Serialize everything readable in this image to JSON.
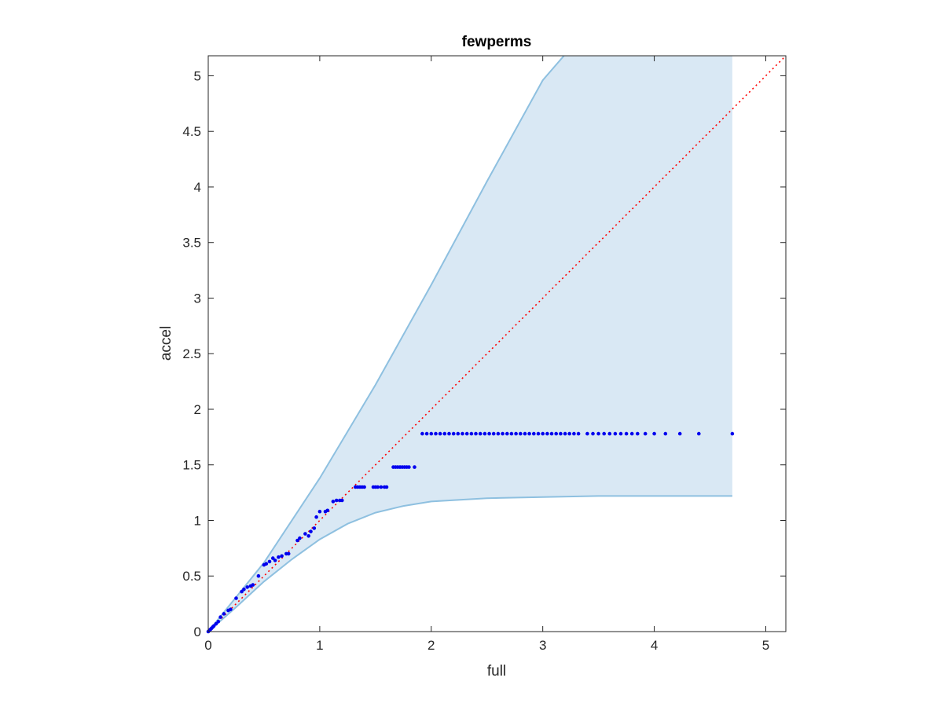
{
  "chart_data": {
    "type": "scatter",
    "title": "fewperms",
    "xlabel": "full",
    "ylabel": "accel",
    "xlim": [
      0,
      5.18
    ],
    "ylim": [
      0,
      5.18
    ],
    "xticks": [
      0,
      1,
      2,
      3,
      4,
      5
    ],
    "xtick_labels": [
      "0",
      "1",
      "2",
      "3",
      "4",
      "5"
    ],
    "yticks": [
      0,
      0.5,
      1,
      1.5,
      2,
      2.5,
      3,
      3.5,
      4,
      4.5,
      5
    ],
    "ytick_labels": [
      "0",
      "0.5",
      "1",
      "1.5",
      "2",
      "2.5",
      "3",
      "3.5",
      "4",
      "4.5",
      "5"
    ],
    "grid": false,
    "colors": {
      "band_fill": "#d9e8f4",
      "band_edge": "#8ec0e0",
      "points": "#0000ee",
      "reference_line": "#ff0000"
    },
    "band": {
      "upper": [
        [
          0,
          0
        ],
        [
          0.5,
          0.62
        ],
        [
          1,
          1.38
        ],
        [
          1.5,
          2.22
        ],
        [
          2,
          3.12
        ],
        [
          2.5,
          4.05
        ],
        [
          3,
          4.96
        ],
        [
          3.19,
          5.18
        ]
      ],
      "lower": [
        [
          0,
          0
        ],
        [
          0.25,
          0.22
        ],
        [
          0.5,
          0.45
        ],
        [
          0.75,
          0.65
        ],
        [
          1,
          0.83
        ],
        [
          1.25,
          0.97
        ],
        [
          1.5,
          1.07
        ],
        [
          1.75,
          1.13
        ],
        [
          2,
          1.17
        ],
        [
          2.5,
          1.2
        ],
        [
          3,
          1.21
        ],
        [
          3.5,
          1.22
        ],
        [
          4,
          1.22
        ],
        [
          4.7,
          1.22
        ]
      ],
      "x_end": 4.7
    },
    "reference_line": {
      "style": "dotted",
      "x": [
        0,
        5.18
      ],
      "y": [
        0,
        5.18
      ]
    },
    "series": [
      {
        "x": [
          0.0,
          0.01,
          0.02,
          0.03,
          0.04,
          0.05,
          0.07,
          0.09,
          0.11,
          0.14,
          0.18,
          0.2,
          0.25,
          0.3,
          0.32,
          0.35,
          0.38,
          0.4,
          0.45,
          0.5,
          0.52,
          0.55,
          0.58,
          0.6,
          0.63,
          0.66,
          0.7,
          0.72,
          0.8,
          0.82,
          0.87,
          0.9,
          0.92,
          0.95,
          0.97,
          1.0,
          1.05,
          1.07,
          1.12,
          1.15,
          1.18,
          1.2,
          1.32,
          1.34,
          1.36,
          1.38,
          1.4,
          1.48,
          1.5,
          1.52,
          1.55,
          1.58,
          1.6,
          1.66,
          1.68,
          1.7,
          1.72,
          1.74,
          1.76,
          1.78,
          1.8,
          1.85,
          1.92,
          1.96,
          2.0,
          2.04,
          2.08,
          2.12,
          2.16,
          2.2,
          2.24,
          2.28,
          2.32,
          2.36,
          2.4,
          2.44,
          2.48,
          2.52,
          2.56,
          2.6,
          2.64,
          2.68,
          2.72,
          2.76,
          2.8,
          2.84,
          2.88,
          2.92,
          2.96,
          3.0,
          3.04,
          3.08,
          3.12,
          3.16,
          3.2,
          3.24,
          3.28,
          3.32,
          3.4,
          3.45,
          3.5,
          3.55,
          3.6,
          3.65,
          3.7,
          3.75,
          3.8,
          3.85,
          3.92,
          4.0,
          4.1,
          4.23,
          4.4,
          4.7
        ],
        "y": [
          0.0,
          0.01,
          0.02,
          0.03,
          0.04,
          0.05,
          0.07,
          0.09,
          0.13,
          0.16,
          0.19,
          0.2,
          0.3,
          0.36,
          0.38,
          0.4,
          0.41,
          0.42,
          0.5,
          0.6,
          0.61,
          0.63,
          0.66,
          0.64,
          0.67,
          0.68,
          0.7,
          0.7,
          0.82,
          0.84,
          0.88,
          0.86,
          0.9,
          0.93,
          1.03,
          1.08,
          1.08,
          1.09,
          1.17,
          1.18,
          1.18,
          1.18,
          1.3,
          1.3,
          1.3,
          1.3,
          1.3,
          1.3,
          1.3,
          1.3,
          1.3,
          1.3,
          1.3,
          1.48,
          1.48,
          1.48,
          1.48,
          1.48,
          1.48,
          1.48,
          1.48,
          1.48,
          1.78,
          1.78,
          1.78,
          1.78,
          1.78,
          1.78,
          1.78,
          1.78,
          1.78,
          1.78,
          1.78,
          1.78,
          1.78,
          1.78,
          1.78,
          1.78,
          1.78,
          1.78,
          1.78,
          1.78,
          1.78,
          1.78,
          1.78,
          1.78,
          1.78,
          1.78,
          1.78,
          1.78,
          1.78,
          1.78,
          1.78,
          1.78,
          1.78,
          1.78,
          1.78,
          1.78,
          1.78,
          1.78,
          1.78,
          1.78,
          1.78,
          1.78,
          1.78,
          1.78,
          1.78,
          1.78,
          1.78,
          1.78,
          1.78,
          1.78,
          1.78,
          1.78
        ]
      }
    ]
  }
}
